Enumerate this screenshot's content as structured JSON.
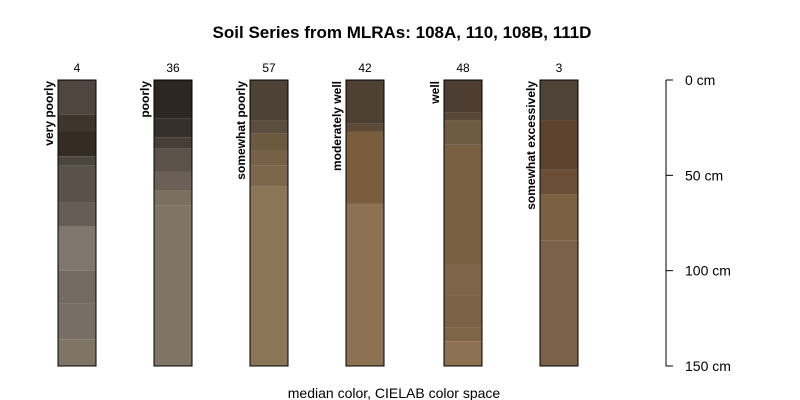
{
  "title": "Soil Series from MLRAs: 108A, 110, 108B, 111D",
  "caption": "median color, CIELAB color space",
  "depth_axis": {
    "unit": "cm",
    "range": [
      0,
      150
    ],
    "ticks": [
      {
        "value": 0,
        "label": "0 cm"
      },
      {
        "value": 50,
        "label": "50 cm"
      },
      {
        "value": 100,
        "label": "100 cm"
      },
      {
        "value": 150,
        "label": "150 cm"
      }
    ]
  },
  "profiles": [
    {
      "label": "very poorly",
      "count": "4",
      "horizons": [
        {
          "top": 0,
          "bottom": 18,
          "color": "#4e463f"
        },
        {
          "top": 18,
          "bottom": 27,
          "color": "#3e352c"
        },
        {
          "top": 27,
          "bottom": 40,
          "color": "#342b22"
        },
        {
          "top": 40,
          "bottom": 45,
          "color": "#4c453e"
        },
        {
          "top": 45,
          "bottom": 64,
          "color": "#5a524a"
        },
        {
          "top": 64,
          "bottom": 77,
          "color": "#665e56"
        },
        {
          "top": 77,
          "bottom": 100,
          "color": "#7f776d"
        },
        {
          "top": 100,
          "bottom": 117,
          "color": "#736a60"
        },
        {
          "top": 117,
          "bottom": 136,
          "color": "#786f64"
        },
        {
          "top": 136,
          "bottom": 150,
          "color": "#7f7567"
        }
      ]
    },
    {
      "label": "poorly",
      "count": "36",
      "horizons": [
        {
          "top": 0,
          "bottom": 20,
          "color": "#2e2622"
        },
        {
          "top": 20,
          "bottom": 30,
          "color": "#372f29"
        },
        {
          "top": 30,
          "bottom": 36,
          "color": "#463e37"
        },
        {
          "top": 36,
          "bottom": 48,
          "color": "#5b5249"
        },
        {
          "top": 48,
          "bottom": 58,
          "color": "#6a6056"
        },
        {
          "top": 58,
          "bottom": 66,
          "color": "#7a7060"
        },
        {
          "top": 66,
          "bottom": 150,
          "color": "#7f7565"
        }
      ]
    },
    {
      "label": "somewhat poorly",
      "count": "57",
      "horizons": [
        {
          "top": 0,
          "bottom": 21,
          "color": "#4e4236"
        },
        {
          "top": 21,
          "bottom": 28,
          "color": "#5c4e3e"
        },
        {
          "top": 28,
          "bottom": 37,
          "color": "#6b5940"
        },
        {
          "top": 37,
          "bottom": 45,
          "color": "#766146"
        },
        {
          "top": 45,
          "bottom": 56,
          "color": "#7d674a"
        },
        {
          "top": 56,
          "bottom": 150,
          "color": "#8a7656"
        }
      ]
    },
    {
      "label": "moderately well",
      "count": "42",
      "horizons": [
        {
          "top": 0,
          "bottom": 23,
          "color": "#4e4134"
        },
        {
          "top": 23,
          "bottom": 27,
          "color": "#5d4a36"
        },
        {
          "top": 27,
          "bottom": 65,
          "color": "#7a5d3c"
        },
        {
          "top": 65,
          "bottom": 150,
          "color": "#8c7252"
        }
      ]
    },
    {
      "label": "well",
      "count": "48",
      "horizons": [
        {
          "top": 0,
          "bottom": 17,
          "color": "#4d3e31"
        },
        {
          "top": 17,
          "bottom": 21,
          "color": "#5a4836"
        },
        {
          "top": 21,
          "bottom": 34,
          "color": "#6f5a42"
        },
        {
          "top": 34,
          "bottom": 97,
          "color": "#7a6042"
        },
        {
          "top": 97,
          "bottom": 113,
          "color": "#7e6448"
        },
        {
          "top": 113,
          "bottom": 130,
          "color": "#7b6146"
        },
        {
          "top": 130,
          "bottom": 137,
          "color": "#7f6548"
        },
        {
          "top": 137,
          "bottom": 150,
          "color": "#8d7052"
        }
      ]
    },
    {
      "label": "somewhat excessively",
      "count": "3",
      "horizons": [
        {
          "top": 0,
          "bottom": 21,
          "color": "#4e4337"
        },
        {
          "top": 21,
          "bottom": 47,
          "color": "#5c4330"
        },
        {
          "top": 47,
          "bottom": 60,
          "color": "#6b4f37"
        },
        {
          "top": 60,
          "bottom": 84,
          "color": "#7d5f42"
        },
        {
          "top": 84,
          "bottom": 150,
          "color": "#7b6148"
        }
      ]
    }
  ]
}
